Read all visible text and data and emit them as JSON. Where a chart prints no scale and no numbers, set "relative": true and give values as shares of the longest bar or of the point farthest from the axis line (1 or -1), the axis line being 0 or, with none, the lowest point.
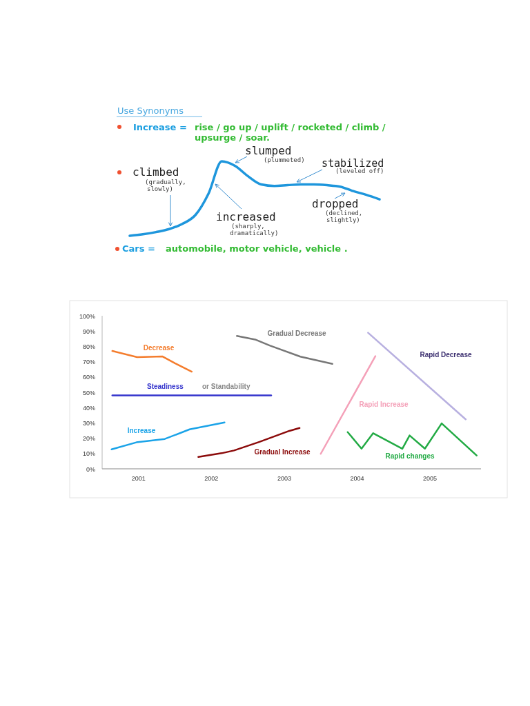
{
  "chart_data": [
    {
      "type": "line",
      "title": "Use Synonyms",
      "relative": true,
      "categories": [
        null,
        null,
        null,
        null,
        null,
        null,
        null,
        null,
        null,
        null,
        null,
        null,
        null,
        null,
        null,
        null,
        null,
        null,
        null,
        null
      ],
      "values": [
        0,
        0.02,
        0.05,
        0.09,
        0.16,
        0.28,
        0.57,
        1,
        0.94,
        0.8,
        0.69,
        0.67,
        0.68,
        0.69,
        0.69,
        0.68,
        0.66,
        0.6,
        0.55,
        0.49
      ],
      "color": "#1e96dc",
      "annotations": [
        "Increase =",
        "rise / go up / uplift / rocketed / climb /",
        "upsurge / soar.",
        "climbed",
        "(gradually,",
        "slowly)",
        "increased",
        "(sharply,",
        "dramatically)",
        "slumped",
        "(plummeted)",
        "stabilized",
        "(leveled off)",
        "dropped",
        "(declined,",
        "slightly)",
        "Cars =",
        "automobile, motor vehicle, vehicle ."
      ]
    },
    {
      "type": "line",
      "xlim": [
        2000.5,
        2005.7
      ],
      "ylim": [
        0,
        100
      ],
      "xticks": [
        2001,
        2002,
        2003,
        2004,
        2005
      ],
      "yticks": [
        {
          "value": 0,
          "label": "0%"
        },
        {
          "value": 10,
          "label": "10%"
        },
        {
          "value": 20,
          "label": "20%"
        },
        {
          "value": 30,
          "label": "30%"
        },
        {
          "value": 40,
          "label": "40%"
        },
        {
          "value": 50,
          "label": "50%"
        },
        {
          "value": 60,
          "label": "60%"
        },
        {
          "value": 70,
          "label": "70%"
        },
        {
          "value": 80,
          "label": "80%"
        },
        {
          "value": 90,
          "label": "90%"
        },
        {
          "value": 100,
          "label": "100%"
        }
      ],
      "annotations": [
        "or Standability"
      ],
      "series": [
        {
          "name": "Decrease",
          "color": "#f47c2c",
          "x": [
            2000.64,
            2000.98,
            2001.33,
            2001.5,
            2001.73
          ],
          "values": [
            77,
            73,
            73.4,
            69,
            63.5
          ]
        },
        {
          "name": "Steadiness",
          "color": "#3333cc",
          "x": [
            2000.64,
            2002.82
          ],
          "values": [
            48,
            48
          ]
        },
        {
          "name": "Increase",
          "color": "#1aa3e8",
          "x": [
            2000.63,
            2000.97,
            2001.36,
            2001.7,
            2002.18
          ],
          "values": [
            12.7,
            17.3,
            19.5,
            25.8,
            30.3
          ]
        },
        {
          "name": "Gradual Increase",
          "color": "#8b0a0a",
          "x": [
            2001.82,
            2002.14,
            2002.31,
            2002.66,
            2003.07,
            2003.21
          ],
          "values": [
            7.8,
            10.2,
            12,
            17.6,
            24.8,
            26.7
          ]
        },
        {
          "name": "Gradual Decrease",
          "color": "#777777",
          "x": [
            2002.35,
            2002.6,
            2002.8,
            2003.22,
            2003.66
          ],
          "values": [
            86.8,
            84.5,
            80.6,
            73.3,
            68.6
          ]
        },
        {
          "name": "Rapid Increase",
          "color": "#f4a0b8",
          "x": [
            2003.5,
            2004.25
          ],
          "values": [
            9.8,
            73.6
          ]
        },
        {
          "name": "Rapid Decrease",
          "color": "#b8b0e0",
          "x": [
            2004.15,
            2005.49
          ],
          "values": [
            88.9,
            32.3
          ]
        },
        {
          "name": "Rapid changes",
          "color": "#22aa44",
          "x": [
            2003.87,
            2004.06,
            2004.22,
            2004.62,
            2004.72,
            2004.93,
            2005.16,
            2005.64
          ],
          "values": [
            24,
            13.2,
            23.3,
            13.1,
            21.8,
            13.2,
            29.7,
            8.7
          ]
        }
      ]
    }
  ]
}
